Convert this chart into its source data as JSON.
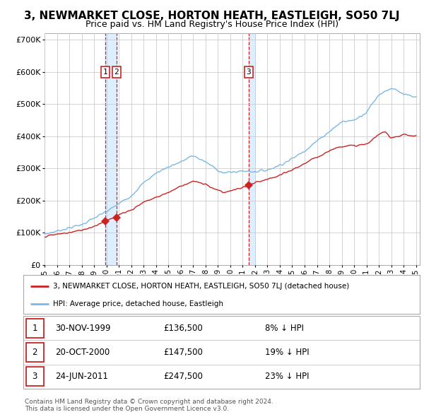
{
  "title": "3, NEWMARKET CLOSE, HORTON HEATH, EASTLEIGH, SO50 7LJ",
  "subtitle": "Price paid vs. HM Land Registry's House Price Index (HPI)",
  "ylim": [
    0,
    720000
  ],
  "yticks": [
    0,
    100000,
    200000,
    300000,
    400000,
    500000,
    600000,
    700000
  ],
  "ytick_labels": [
    "£0",
    "£100K",
    "£200K",
    "£300K",
    "£400K",
    "£500K",
    "£600K",
    "£700K"
  ],
  "hpi_color": "#7ab8e8",
  "price_color": "#cc2222",
  "sale_year_floats": [
    1999.917,
    2000.806,
    2011.479
  ],
  "sale_prices": [
    136500,
    147500,
    247500
  ],
  "sale_labels": [
    "1",
    "2",
    "3"
  ],
  "legend_label_price": "3, NEWMARKET CLOSE, HORTON HEATH, EASTLEIGH, SO50 7LJ (detached house)",
  "legend_label_hpi": "HPI: Average price, detached house, Eastleigh",
  "table_rows": [
    [
      "1",
      "30-NOV-1999",
      "£136,500",
      "8% ↓ HPI"
    ],
    [
      "2",
      "20-OCT-2000",
      "£147,500",
      "19% ↓ HPI"
    ],
    [
      "3",
      "24-JUN-2011",
      "£247,500",
      "23% ↓ HPI"
    ]
  ],
  "footer": "Contains HM Land Registry data © Crown copyright and database right 2024.\nThis data is licensed under the Open Government Licence v3.0.",
  "bg_color": "#ffffff",
  "grid_color": "#cccccc",
  "shade_color": "#ddeeff",
  "title_fontsize": 11,
  "subtitle_fontsize": 9,
  "tick_fontsize": 8
}
